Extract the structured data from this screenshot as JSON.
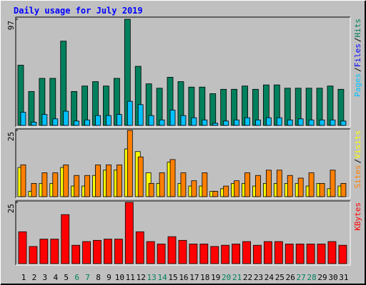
{
  "chart_data": [
    {
      "type": "bar",
      "title": "Daily usage for July 2019",
      "ylim": [
        0,
        97
      ],
      "yticks": [
        97
      ],
      "legend_separator": "/",
      "series": [
        {
          "name": "Hits",
          "color": "#00805c",
          "values": [
            55,
            31,
            43,
            43,
            77,
            31,
            36,
            40,
            36,
            43,
            97,
            54,
            38,
            34,
            44,
            40,
            35,
            35,
            29,
            33,
            33,
            36,
            33,
            37,
            37,
            34,
            34,
            34,
            34,
            36,
            33
          ]
        },
        {
          "name": "Files",
          "color": "#0000ff",
          "values": [
            0,
            0,
            0,
            0,
            0,
            0,
            0,
            0,
            0,
            0,
            0,
            0,
            0,
            0,
            0,
            0,
            0,
            0,
            0,
            0,
            0,
            0,
            0,
            0,
            0,
            0,
            0,
            0,
            0,
            0,
            0
          ]
        },
        {
          "name": "Pages",
          "color": "#00c0ff",
          "values": [
            12,
            3,
            10,
            6,
            13,
            4,
            5,
            9,
            9,
            10,
            22,
            19,
            9,
            5,
            14,
            9,
            7,
            5,
            2,
            4,
            5,
            7,
            5,
            7,
            7,
            5,
            6,
            5,
            5,
            5,
            4
          ]
        }
      ]
    },
    {
      "type": "bar",
      "ylim": [
        0,
        25
      ],
      "yticks": [
        25
      ],
      "legend_separator": "/",
      "series": [
        {
          "name": "Visits",
          "color": "#ffff00",
          "values": [
            11,
            2,
            5,
            5,
            11,
            4,
            4,
            8,
            10,
            10,
            18,
            17,
            9,
            5,
            13,
            5,
            4,
            4,
            2,
            3,
            5,
            5,
            4,
            5,
            5,
            5,
            5,
            4,
            5,
            3,
            4
          ]
        },
        {
          "name": "Sites",
          "color": "#ff8000",
          "values": [
            12,
            5,
            9,
            9,
            12,
            8,
            8,
            12,
            12,
            12,
            25,
            15,
            5,
            9,
            14,
            9,
            6,
            9,
            2,
            4,
            6,
            9,
            8,
            10,
            10,
            8,
            7,
            9,
            5,
            10,
            5
          ]
        }
      ]
    },
    {
      "type": "bar",
      "ylim": [
        0,
        25
      ],
      "yticks": [
        25
      ],
      "categories": [
        "1",
        "2",
        "3",
        "4",
        "5",
        "6",
        "7",
        "8",
        "9",
        "10",
        "11",
        "12",
        "13",
        "14",
        "15",
        "16",
        "17",
        "18",
        "19",
        "20",
        "21",
        "22",
        "23",
        "24",
        "25",
        "26",
        "27",
        "28",
        "29",
        "30",
        "31"
      ],
      "category_colors": [
        "#000000",
        "#000000",
        "#000000",
        "#000000",
        "#000000",
        "#00805c",
        "#00805c",
        "#000000",
        "#000000",
        "#000000",
        "#000000",
        "#000000",
        "#00805c",
        "#00805c",
        "#000000",
        "#000000",
        "#000000",
        "#000000",
        "#000000",
        "#00805c",
        "#00805c",
        "#000000",
        "#000000",
        "#000000",
        "#000000",
        "#000000",
        "#00805c",
        "#00805c",
        "#000000",
        "#000000",
        "#000000"
      ],
      "series": [
        {
          "name": "KBytes",
          "color": "#ff0000",
          "values": [
            13,
            7,
            10,
            10,
            20,
            7.5,
            9,
            9.5,
            10,
            10,
            25,
            13,
            9,
            8,
            11,
            9.5,
            8,
            8,
            7,
            7.5,
            8,
            9,
            7.5,
            9,
            9,
            8,
            8,
            8,
            8,
            9,
            7.5
          ]
        }
      ]
    }
  ]
}
